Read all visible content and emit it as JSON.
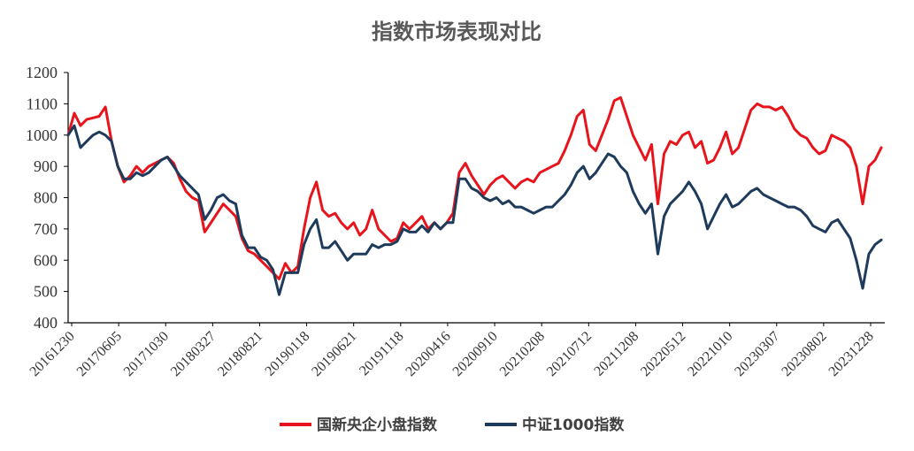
{
  "chart_data": {
    "type": "line",
    "title": "指数市场表现对比",
    "xlabel": "",
    "ylabel": "",
    "ylim": [
      400,
      1200
    ],
    "yticks": [
      400,
      500,
      600,
      700,
      800,
      900,
      1000,
      1100,
      1200
    ],
    "xticks": [
      "20161230",
      "20170605",
      "20171030",
      "20180327",
      "20180821",
      "20190118",
      "20190621",
      "20191118",
      "20200416",
      "20200910",
      "20210208",
      "20210712",
      "20211208",
      "20220512",
      "20221010",
      "20230307",
      "20230802",
      "20231228"
    ],
    "grid": false,
    "legend": "bottom",
    "series": [
      {
        "name": "国新央企小盘指数",
        "color": "#e8141c",
        "values": [
          1000,
          1070,
          1030,
          1050,
          1055,
          1060,
          1090,
          980,
          900,
          850,
          870,
          900,
          880,
          900,
          910,
          920,
          930,
          910,
          860,
          820,
          800,
          790,
          690,
          720,
          750,
          780,
          760,
          740,
          670,
          630,
          620,
          600,
          580,
          560,
          540,
          590,
          560,
          580,
          700,
          800,
          850,
          760,
          740,
          750,
          720,
          700,
          720,
          680,
          700,
          760,
          700,
          680,
          660,
          670,
          720,
          700,
          720,
          740,
          700,
          720,
          700,
          720,
          750,
          880,
          910,
          870,
          840,
          810,
          840,
          860,
          870,
          850,
          830,
          850,
          860,
          850,
          880,
          890,
          900,
          910,
          950,
          1000,
          1060,
          1080,
          970,
          950,
          1000,
          1050,
          1110,
          1120,
          1060,
          1000,
          960,
          920,
          970,
          780,
          940,
          980,
          970,
          1000,
          1010,
          960,
          980,
          910,
          920,
          960,
          1010,
          940,
          960,
          1020,
          1080,
          1100,
          1090,
          1090,
          1080,
          1090,
          1060,
          1020,
          1000,
          990,
          960,
          940,
          950,
          1000,
          990,
          980,
          960,
          900,
          780,
          900,
          920,
          960
        ]
      },
      {
        "name": "中证1000指数",
        "color": "#1f3b5c",
        "values": [
          1000,
          1030,
          960,
          980,
          1000,
          1010,
          1000,
          980,
          900,
          860,
          860,
          880,
          870,
          880,
          900,
          920,
          930,
          900,
          870,
          850,
          830,
          810,
          730,
          760,
          800,
          810,
          790,
          780,
          680,
          640,
          640,
          610,
          600,
          570,
          490,
          560,
          560,
          560,
          650,
          700,
          730,
          640,
          640,
          660,
          630,
          600,
          620,
          620,
          620,
          650,
          640,
          650,
          650,
          660,
          700,
          690,
          690,
          710,
          690,
          720,
          700,
          720,
          720,
          860,
          860,
          830,
          820,
          800,
          790,
          800,
          780,
          790,
          770,
          770,
          760,
          750,
          760,
          770,
          770,
          790,
          810,
          840,
          880,
          900,
          860,
          880,
          910,
          940,
          930,
          900,
          880,
          820,
          780,
          750,
          780,
          620,
          740,
          780,
          800,
          820,
          850,
          820,
          780,
          700,
          740,
          780,
          810,
          770,
          780,
          800,
          820,
          830,
          810,
          800,
          790,
          780,
          770,
          770,
          760,
          740,
          710,
          700,
          690,
          720,
          730,
          700,
          670,
          600,
          510,
          620,
          650,
          665
        ]
      }
    ]
  }
}
